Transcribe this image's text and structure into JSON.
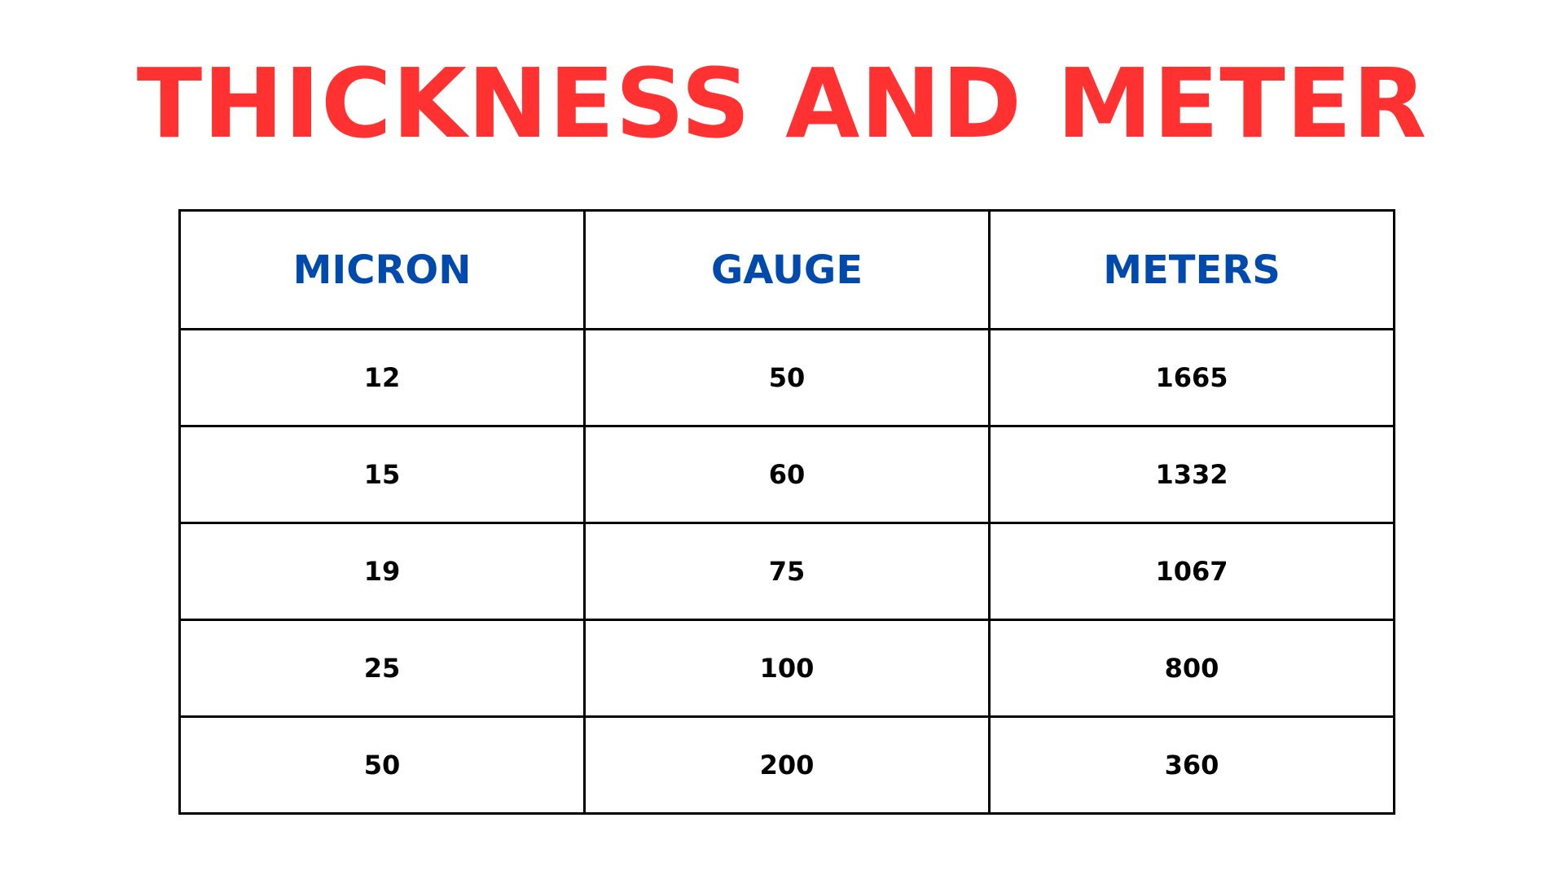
{
  "title": "THICKNESS AND METER",
  "colors": {
    "title": "#ff3131",
    "header_text": "#004aad",
    "cell_text": "#000000",
    "border": "#000000",
    "background": "#ffffff"
  },
  "table": {
    "headers": [
      "MICRON",
      "GAUGE",
      "METERS"
    ],
    "rows": [
      [
        "12",
        "50",
        "1665"
      ],
      [
        "15",
        "60",
        "1332"
      ],
      [
        "19",
        "75",
        "1067"
      ],
      [
        "25",
        "100",
        "800"
      ],
      [
        "50",
        "200",
        "360"
      ]
    ]
  }
}
